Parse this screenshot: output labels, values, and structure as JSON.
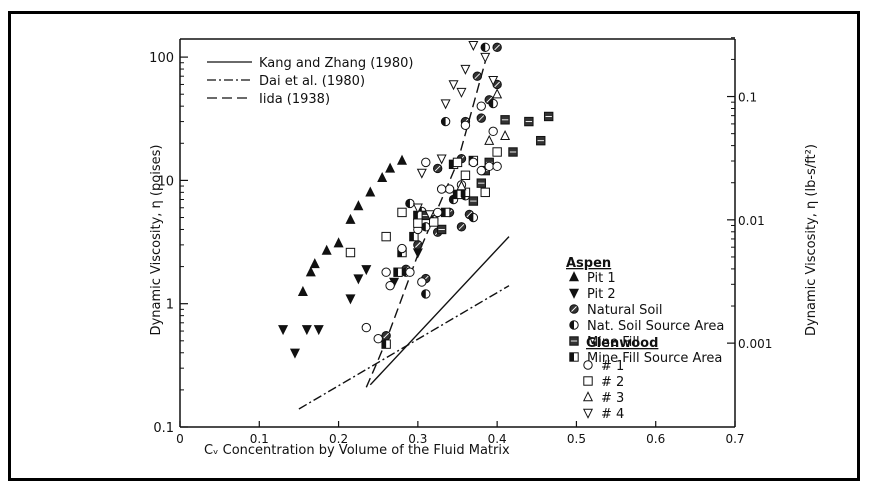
{
  "chart_data": {
    "type": "scatter",
    "title": "",
    "xlabel": "Cᵥ Concentration by Volume of the Fluid Matrix",
    "ylabel": "Dynamic Viscosity, η (poises)",
    "ylabel_right": "Dynamic Viscosity, η (lb-s/ft²)",
    "xlim": [
      0,
      0.7
    ],
    "ylim": [
      0.1,
      150
    ],
    "yscale": "log",
    "x_ticks": [
      "0",
      "0.1",
      "0.2",
      "0.3",
      "0.4",
      "0.5",
      "0.6",
      "0.7"
    ],
    "x_tick_values": [
      0,
      0.1,
      0.2,
      0.3,
      0.4,
      0.5,
      0.6,
      0.7
    ],
    "y_ticks": [
      "0.1",
      "1",
      "10",
      "100"
    ],
    "y_tick_values": [
      0.1,
      1,
      10,
      100
    ],
    "y2_ticks": [
      "0.001",
      "0.01",
      "0.1"
    ],
    "y2_tick_values_poise": [
      0.4788,
      4.788,
      47.88
    ],
    "lines": [
      {
        "name": "Kang and Zhang (1980)",
        "style": "solid",
        "x": [
          0.24,
          0.415
        ],
        "y": [
          0.22,
          3.5
        ]
      },
      {
        "name": "Dai et al. (1980)",
        "style": "dashdot",
        "x": [
          0.15,
          0.415
        ],
        "y": [
          0.14,
          1.4
        ]
      },
      {
        "name": "Iida (1938)",
        "style": "dashed",
        "x": [
          0.235,
          0.25,
          0.26,
          0.3,
          0.35,
          0.39
        ],
        "y": [
          0.21,
          0.35,
          0.5,
          2.5,
          14,
          120
        ]
      }
    ],
    "legend_group_aspen": "Aspen",
    "legend_group_glenwood": "Glenwood",
    "series": [
      {
        "name": "Pit 1",
        "marker": "triangle-up-filled",
        "points": [
          [
            0.165,
            1.8
          ],
          [
            0.17,
            2.1
          ],
          [
            0.185,
            2.7
          ],
          [
            0.2,
            3.1
          ],
          [
            0.215,
            4.8
          ],
          [
            0.225,
            6.2
          ],
          [
            0.24,
            8.0
          ],
          [
            0.255,
            10.5
          ],
          [
            0.265,
            12.5
          ],
          [
            0.28,
            14.5
          ],
          [
            0.155,
            1.25
          ]
        ]
      },
      {
        "name": "Pit 2",
        "marker": "triangle-down-filled",
        "points": [
          [
            0.13,
            0.62
          ],
          [
            0.145,
            0.4
          ],
          [
            0.16,
            0.62
          ],
          [
            0.175,
            0.62
          ],
          [
            0.215,
            1.1
          ],
          [
            0.225,
            1.6
          ],
          [
            0.235,
            1.9
          ],
          [
            0.27,
            1.5
          ],
          [
            0.3,
            2.6
          ]
        ]
      },
      {
        "name": "Natural Soil",
        "marker": "circle-hatched",
        "points": [
          [
            0.26,
            0.55
          ],
          [
            0.285,
            1.9
          ],
          [
            0.3,
            3.0
          ],
          [
            0.31,
            1.6
          ],
          [
            0.325,
            3.8
          ],
          [
            0.34,
            5.5
          ],
          [
            0.355,
            4.2
          ],
          [
            0.365,
            5.3
          ],
          [
            0.38,
            32
          ],
          [
            0.39,
            45
          ],
          [
            0.4,
            60
          ],
          [
            0.375,
            70
          ],
          [
            0.4,
            120
          ],
          [
            0.325,
            12.5
          ],
          [
            0.355,
            15
          ],
          [
            0.36,
            30
          ]
        ]
      },
      {
        "name": "Nat. Soil Source Area",
        "marker": "circle-half",
        "points": [
          [
            0.29,
            6.5
          ],
          [
            0.305,
            5.6
          ],
          [
            0.31,
            4.2
          ],
          [
            0.32,
            4.8
          ],
          [
            0.335,
            30
          ],
          [
            0.345,
            7.0
          ],
          [
            0.36,
            7.5
          ],
          [
            0.37,
            5.0
          ],
          [
            0.385,
            120
          ],
          [
            0.395,
            42
          ],
          [
            0.285,
            1.8
          ],
          [
            0.31,
            1.2
          ]
        ]
      },
      {
        "name": "Mine Fill",
        "marker": "square-hatched",
        "points": [
          [
            0.37,
            6.8
          ],
          [
            0.38,
            9.5
          ],
          [
            0.385,
            12
          ],
          [
            0.39,
            14
          ],
          [
            0.41,
            31
          ],
          [
            0.42,
            17
          ],
          [
            0.44,
            30
          ],
          [
            0.455,
            21
          ],
          [
            0.465,
            33
          ],
          [
            0.31,
            5.2
          ],
          [
            0.33,
            4.0
          ]
        ]
      },
      {
        "name": "Mine Fill Source Area",
        "marker": "square-half",
        "points": [
          [
            0.26,
            0.47
          ],
          [
            0.275,
            1.8
          ],
          [
            0.28,
            2.6
          ],
          [
            0.295,
            3.5
          ],
          [
            0.3,
            5.2
          ],
          [
            0.335,
            5.5
          ],
          [
            0.345,
            13.5
          ],
          [
            0.35,
            7.7
          ],
          [
            0.36,
            8.0
          ],
          [
            0.37,
            14.5
          ]
        ]
      },
      {
        "name": "# 1",
        "marker": "circle-open",
        "points": [
          [
            0.235,
            0.64
          ],
          [
            0.25,
            0.52
          ],
          [
            0.26,
            1.8
          ],
          [
            0.265,
            1.4
          ],
          [
            0.28,
            2.8
          ],
          [
            0.29,
            1.8
          ],
          [
            0.3,
            4.0
          ],
          [
            0.305,
            1.5
          ],
          [
            0.325,
            5.5
          ],
          [
            0.34,
            8.5
          ],
          [
            0.355,
            9.2
          ],
          [
            0.37,
            14
          ],
          [
            0.38,
            12
          ],
          [
            0.39,
            13
          ],
          [
            0.4,
            13
          ],
          [
            0.395,
            25
          ],
          [
            0.38,
            40
          ],
          [
            0.31,
            14
          ],
          [
            0.33,
            8.5
          ],
          [
            0.36,
            28
          ]
        ]
      },
      {
        "name": "# 2",
        "marker": "square-open",
        "points": [
          [
            0.215,
            2.6
          ],
          [
            0.26,
            3.5
          ],
          [
            0.28,
            5.5
          ],
          [
            0.3,
            4.5
          ],
          [
            0.32,
            4.6
          ],
          [
            0.36,
            11
          ],
          [
            0.385,
            8.0
          ],
          [
            0.4,
            17
          ],
          [
            0.35,
            14
          ]
        ]
      },
      {
        "name": "# 3",
        "marker": "triangle-up-open",
        "points": [
          [
            0.39,
            21
          ],
          [
            0.41,
            23
          ],
          [
            0.4,
            50
          ],
          [
            0.355,
            9
          ]
        ]
      },
      {
        "name": "# 4",
        "marker": "triangle-down-open",
        "points": [
          [
            0.305,
            11.5
          ],
          [
            0.33,
            15
          ],
          [
            0.335,
            42
          ],
          [
            0.345,
            60
          ],
          [
            0.36,
            80
          ],
          [
            0.37,
            125
          ],
          [
            0.385,
            100
          ],
          [
            0.395,
            65
          ],
          [
            0.3,
            6.0
          ],
          [
            0.315,
            5.3
          ],
          [
            0.355,
            52
          ]
        ]
      }
    ]
  }
}
